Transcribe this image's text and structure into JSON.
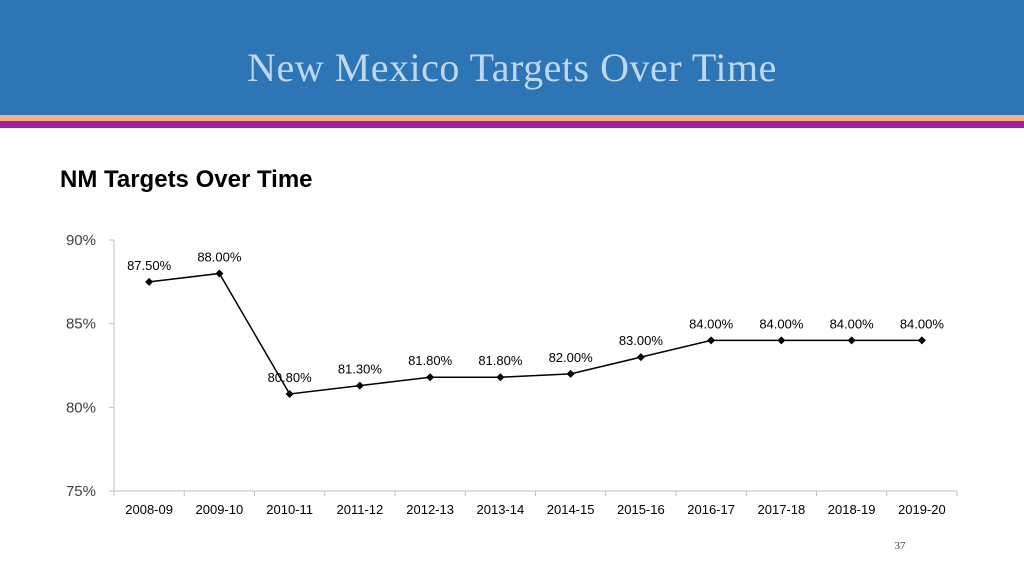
{
  "slide": {
    "title": "New Mexico Targets Over Time",
    "page_number": "37"
  },
  "colors": {
    "banner": "#2e75b6",
    "title_text": "#bdd7ee",
    "stripe_orange": "#f4b183",
    "stripe_purple": "#a020a0",
    "series_line": "#000000"
  },
  "chart_data": {
    "type": "line",
    "title": "NM Targets Over Time",
    "xlabel": "",
    "ylabel": "",
    "categories": [
      "2008-09",
      "2009-10",
      "2010-11",
      "2011-12",
      "2012-13",
      "2013-14",
      "2014-15",
      "2015-16",
      "2016-17",
      "2017-18",
      "2018-19",
      "2019-20"
    ],
    "series": [
      {
        "values": [
          87.5,
          88.0,
          80.8,
          81.3,
          81.8,
          81.8,
          82.0,
          83.0,
          84.0,
          84.0,
          84.0,
          84.0
        ],
        "data_labels": [
          "87.50%",
          "88.00%",
          "80.80%",
          "81.30%",
          "81.80%",
          "81.80%",
          "82.00%",
          "83.00%",
          "84.00%",
          "84.00%",
          "84.00%",
          "84.00%"
        ],
        "marker": "diamond"
      }
    ],
    "ylim": [
      75,
      90
    ],
    "y_ticks": [
      75,
      80,
      85,
      90
    ],
    "y_tick_labels": [
      "75%",
      "80%",
      "85%",
      "90%"
    ],
    "grid": false,
    "legend": "none"
  }
}
